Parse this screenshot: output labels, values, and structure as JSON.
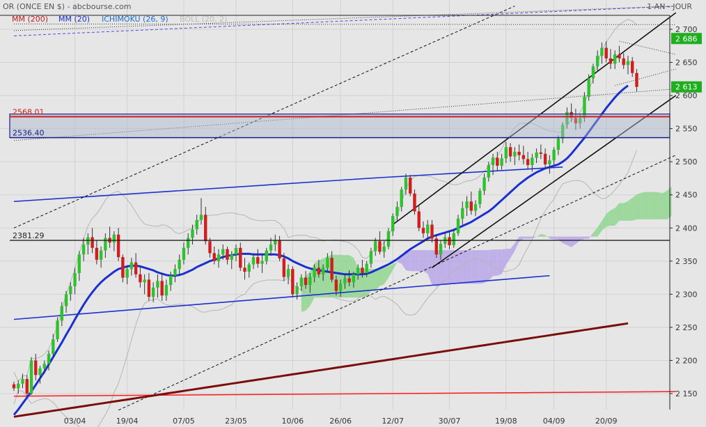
{
  "header": {
    "title": "OR (ONCE EN $) - abcbourse.com",
    "period": "1 AN - JOUR"
  },
  "indicators": [
    {
      "label": "MM (200)",
      "color": "#c81e1e"
    },
    {
      "label": "MM (20)",
      "color": "#1a2fd0"
    },
    {
      "label": "ICHIMOKU (26, 9)",
      "color": "#1a6fd0"
    },
    {
      "label": "BOLL (20, 2)",
      "color": "#bdbdbd"
    }
  ],
  "chart_data": {
    "type": "candlestick",
    "ylim": [
      2125,
      2735
    ],
    "y_ticks": [
      {
        "v": 2150,
        "label": "2 150"
      },
      {
        "v": 2200,
        "label": "2 200"
      },
      {
        "v": 2250,
        "label": "2 250"
      },
      {
        "v": 2300,
        "label": "2 300"
      },
      {
        "v": 2350,
        "label": "2 350"
      },
      {
        "v": 2400,
        "label": "2 400"
      },
      {
        "v": 2450,
        "label": "2 450"
      },
      {
        "v": 2500,
        "label": "2 500"
      },
      {
        "v": 2550,
        "label": "2 550"
      },
      {
        "v": 2600,
        "label": "2 600"
      },
      {
        "v": 2650,
        "label": "2 650"
      },
      {
        "v": 2700,
        "label": "2 700"
      }
    ],
    "x_ticks": [
      {
        "idx": 14,
        "label": "03/04"
      },
      {
        "idx": 26,
        "label": "19/04"
      },
      {
        "idx": 39,
        "label": "07/05"
      },
      {
        "idx": 51,
        "label": "23/05"
      },
      {
        "idx": 64,
        "label": "10/06"
      },
      {
        "idx": 75,
        "label": "26/06"
      },
      {
        "idx": 87,
        "label": "12/07"
      },
      {
        "idx": 100,
        "label": "30/07"
      },
      {
        "idx": 113,
        "label": "19/08"
      },
      {
        "idx": 124,
        "label": "04/09"
      },
      {
        "idx": 136,
        "label": "20/09"
      }
    ],
    "price_labels": [
      {
        "value": 2686,
        "label": "2 686"
      },
      {
        "value": 2613,
        "label": "2 613"
      }
    ],
    "levels": [
      {
        "value": 2568.01,
        "label": "2568.01",
        "color": "#c81e1e"
      },
      {
        "value": 2536.4,
        "label": "2536.40",
        "color": "#1a1a8c"
      },
      {
        "value": 2381.29,
        "label": "2381.29",
        "color": "#222222"
      }
    ],
    "candles": [
      [
        2164,
        2168,
        2154,
        2158
      ],
      [
        2158,
        2170,
        2150,
        2165
      ],
      [
        2165,
        2180,
        2158,
        2172
      ],
      [
        2172,
        2178,
        2145,
        2150
      ],
      [
        2150,
        2205,
        2148,
        2200
      ],
      [
        2200,
        2210,
        2170,
        2178
      ],
      [
        2178,
        2192,
        2165,
        2188
      ],
      [
        2188,
        2200,
        2180,
        2195
      ],
      [
        2195,
        2215,
        2185,
        2210
      ],
      [
        2210,
        2240,
        2205,
        2232
      ],
      [
        2232,
        2265,
        2228,
        2260
      ],
      [
        2260,
        2288,
        2252,
        2282
      ],
      [
        2282,
        2305,
        2272,
        2300
      ],
      [
        2300,
        2318,
        2290,
        2312
      ],
      [
        2312,
        2340,
        2300,
        2332
      ],
      [
        2332,
        2365,
        2320,
        2360
      ],
      [
        2360,
        2385,
        2350,
        2375
      ],
      [
        2375,
        2392,
        2360,
        2386
      ],
      [
        2386,
        2400,
        2362,
        2370
      ],
      [
        2370,
        2382,
        2345,
        2352
      ],
      [
        2352,
        2372,
        2340,
        2366
      ],
      [
        2366,
        2392,
        2355,
        2385
      ],
      [
        2385,
        2402,
        2370,
        2378
      ],
      [
        2378,
        2395,
        2365,
        2390
      ],
      [
        2390,
        2400,
        2350,
        2356
      ],
      [
        2356,
        2360,
        2318,
        2325
      ],
      [
        2325,
        2342,
        2315,
        2338
      ],
      [
        2338,
        2355,
        2328,
        2348
      ],
      [
        2348,
        2362,
        2325,
        2330
      ],
      [
        2330,
        2342,
        2310,
        2318
      ],
      [
        2318,
        2330,
        2300,
        2322
      ],
      [
        2322,
        2332,
        2290,
        2296
      ],
      [
        2296,
        2318,
        2288,
        2310
      ],
      [
        2310,
        2330,
        2295,
        2320
      ],
      [
        2320,
        2332,
        2290,
        2298
      ],
      [
        2298,
        2322,
        2290,
        2314
      ],
      [
        2314,
        2334,
        2305,
        2328
      ],
      [
        2328,
        2345,
        2318,
        2338
      ],
      [
        2338,
        2360,
        2330,
        2352
      ],
      [
        2352,
        2378,
        2345,
        2370
      ],
      [
        2370,
        2392,
        2360,
        2385
      ],
      [
        2385,
        2405,
        2375,
        2398
      ],
      [
        2398,
        2420,
        2390,
        2412
      ],
      [
        2412,
        2445,
        2405,
        2420
      ],
      [
        2420,
        2432,
        2375,
        2380
      ],
      [
        2380,
        2385,
        2355,
        2362
      ],
      [
        2362,
        2372,
        2345,
        2350
      ],
      [
        2350,
        2368,
        2340,
        2360
      ],
      [
        2360,
        2375,
        2352,
        2368
      ],
      [
        2368,
        2372,
        2345,
        2352
      ],
      [
        2352,
        2365,
        2338,
        2360
      ],
      [
        2360,
        2375,
        2350,
        2370
      ],
      [
        2370,
        2378,
        2335,
        2340
      ],
      [
        2340,
        2355,
        2322,
        2334
      ],
      [
        2334,
        2348,
        2325,
        2345
      ],
      [
        2345,
        2362,
        2338,
        2356
      ],
      [
        2356,
        2368,
        2340,
        2346
      ],
      [
        2346,
        2360,
        2332,
        2350
      ],
      [
        2350,
        2370,
        2345,
        2366
      ],
      [
        2366,
        2385,
        2358,
        2375
      ],
      [
        2375,
        2390,
        2365,
        2382
      ],
      [
        2382,
        2388,
        2350,
        2354
      ],
      [
        2354,
        2362,
        2320,
        2326
      ],
      [
        2326,
        2345,
        2315,
        2338
      ],
      [
        2338,
        2342,
        2295,
        2300
      ],
      [
        2300,
        2318,
        2292,
        2312
      ],
      [
        2312,
        2330,
        2305,
        2325
      ],
      [
        2325,
        2335,
        2308,
        2314
      ],
      [
        2314,
        2332,
        2302,
        2326
      ],
      [
        2326,
        2345,
        2318,
        2340
      ],
      [
        2340,
        2352,
        2325,
        2330
      ],
      [
        2330,
        2345,
        2320,
        2340
      ],
      [
        2340,
        2362,
        2335,
        2355
      ],
      [
        2355,
        2365,
        2318,
        2322
      ],
      [
        2322,
        2328,
        2298,
        2305
      ],
      [
        2305,
        2322,
        2296,
        2316
      ],
      [
        2316,
        2330,
        2308,
        2324
      ],
      [
        2324,
        2336,
        2312,
        2318
      ],
      [
        2318,
        2334,
        2310,
        2330
      ],
      [
        2330,
        2345,
        2322,
        2340
      ],
      [
        2340,
        2352,
        2325,
        2332
      ],
      [
        2332,
        2350,
        2326,
        2346
      ],
      [
        2346,
        2370,
        2340,
        2365
      ],
      [
        2365,
        2385,
        2358,
        2380
      ],
      [
        2380,
        2395,
        2360,
        2364
      ],
      [
        2364,
        2380,
        2355,
        2372
      ],
      [
        2372,
        2400,
        2368,
        2395
      ],
      [
        2395,
        2422,
        2388,
        2418
      ],
      [
        2418,
        2440,
        2410,
        2432
      ],
      [
        2432,
        2462,
        2425,
        2458
      ],
      [
        2458,
        2482,
        2450,
        2476
      ],
      [
        2476,
        2480,
        2448,
        2452
      ],
      [
        2452,
        2458,
        2420,
        2425
      ],
      [
        2425,
        2435,
        2395,
        2400
      ],
      [
        2400,
        2410,
        2385,
        2392
      ],
      [
        2392,
        2412,
        2384,
        2405
      ],
      [
        2405,
        2412,
        2378,
        2384
      ],
      [
        2384,
        2390,
        2355,
        2360
      ],
      [
        2360,
        2382,
        2352,
        2376
      ],
      [
        2376,
        2392,
        2370,
        2386
      ],
      [
        2386,
        2395,
        2368,
        2374
      ],
      [
        2374,
        2398,
        2370,
        2392
      ],
      [
        2392,
        2420,
        2388,
        2414
      ],
      [
        2414,
        2440,
        2405,
        2430
      ],
      [
        2430,
        2448,
        2418,
        2440
      ],
      [
        2440,
        2455,
        2420,
        2426
      ],
      [
        2426,
        2442,
        2418,
        2436
      ],
      [
        2436,
        2460,
        2430,
        2456
      ],
      [
        2456,
        2482,
        2450,
        2476
      ],
      [
        2476,
        2500,
        2470,
        2495
      ],
      [
        2495,
        2512,
        2480,
        2506
      ],
      [
        2506,
        2515,
        2486,
        2494
      ],
      [
        2494,
        2512,
        2488,
        2505
      ],
      [
        2505,
        2530,
        2498,
        2522
      ],
      [
        2522,
        2528,
        2500,
        2508
      ],
      [
        2508,
        2522,
        2495,
        2515
      ],
      [
        2515,
        2526,
        2502,
        2510
      ],
      [
        2510,
        2524,
        2496,
        2504
      ],
      [
        2504,
        2515,
        2488,
        2495
      ],
      [
        2495,
        2512,
        2485,
        2506
      ],
      [
        2506,
        2520,
        2498,
        2514
      ],
      [
        2514,
        2526,
        2504,
        2512
      ],
      [
        2512,
        2520,
        2490,
        2496
      ],
      [
        2496,
        2510,
        2482,
        2502
      ],
      [
        2502,
        2522,
        2495,
        2518
      ],
      [
        2518,
        2540,
        2510,
        2535
      ],
      [
        2535,
        2560,
        2528,
        2556
      ],
      [
        2556,
        2582,
        2550,
        2575
      ],
      [
        2575,
        2588,
        2560,
        2566
      ],
      [
        2566,
        2580,
        2548,
        2558
      ],
      [
        2558,
        2572,
        2550,
        2566
      ],
      [
        2566,
        2605,
        2560,
        2598
      ],
      [
        2598,
        2632,
        2592,
        2626
      ],
      [
        2626,
        2648,
        2618,
        2644
      ],
      [
        2644,
        2668,
        2636,
        2660
      ],
      [
        2660,
        2680,
        2648,
        2672
      ],
      [
        2672,
        2682,
        2650,
        2656
      ],
      [
        2656,
        2670,
        2640,
        2648
      ],
      [
        2648,
        2668,
        2640,
        2662
      ],
      [
        2662,
        2675,
        2650,
        2656
      ],
      [
        2656,
        2664,
        2640,
        2646
      ],
      [
        2646,
        2660,
        2632,
        2652
      ],
      [
        2652,
        2658,
        2628,
        2634
      ],
      [
        2634,
        2640,
        2606,
        2613
      ]
    ],
    "ma20": [
      2118,
      2126,
      2135,
      2144,
      2153,
      2163,
      2173,
      2183,
      2194,
      2205,
      2216,
      2227,
      2239,
      2250,
      2262,
      2273,
      2284,
      2294,
      2303,
      2311,
      2318,
      2324,
      2329,
      2334,
      2338,
      2340,
      2342,
      2343,
      2343,
      2342,
      2340,
      2338,
      2336,
      2333,
      2331,
      2329,
      2328,
      2328,
      2329,
      2331,
      2334,
      2337,
      2341,
      2344,
      2347,
      2350,
      2352,
      2354,
      2356,
      2358,
      2359,
      2360,
      2361,
      2361,
      2361,
      2360,
      2360,
      2360,
      2360,
      2360,
      2360,
      2359,
      2357,
      2354,
      2350,
      2347,
      2344,
      2341,
      2339,
      2337,
      2336,
      2335,
      2334,
      2333,
      2332,
      2331,
      2330,
      2330,
      2330,
      2330,
      2330,
      2331,
      2333,
      2336,
      2339,
      2342,
      2345,
      2349,
      2353,
      2358,
      2363,
      2368,
      2372,
      2376,
      2380,
      2384,
      2387,
      2389,
      2391,
      2393,
      2395,
      2397,
      2400,
      2403,
      2406,
      2409,
      2413,
      2417,
      2421,
      2425,
      2430,
      2436,
      2442,
      2448,
      2454,
      2460,
      2466,
      2471,
      2476,
      2480,
      2484,
      2487,
      2490,
      2492,
      2494,
      2496,
      2500,
      2505,
      2512,
      2520,
      2528,
      2536,
      2545,
      2554,
      2563,
      2572,
      2581,
      2589,
      2597,
      2604,
      2610,
      2615
    ],
    "ma200": [
      2115,
      2116,
      2117,
      2118,
      2119,
      2120,
      2121,
      2122,
      2123,
      2124,
      2125,
      2126,
      2127,
      2128,
      2129,
      2130,
      2131,
      2132,
      2133,
      2134,
      2135,
      2136,
      2137,
      2138,
      2139,
      2140,
      2141,
      2142,
      2143,
      2144,
      2145,
      2146,
      2147,
      2148,
      2149,
      2150,
      2151,
      2152,
      2153,
      2154,
      2155,
      2156,
      2157,
      2158,
      2159,
      2160,
      2161,
      2162,
      2163,
      2164,
      2165,
      2166,
      2167,
      2168,
      2169,
      2170,
      2171,
      2172,
      2173,
      2174,
      2175,
      2176,
      2177,
      2178,
      2179,
      2180,
      2181,
      2182,
      2183,
      2184,
      2185,
      2186,
      2187,
      2188,
      2189,
      2190,
      2191,
      2192,
      2193,
      2194,
      2195,
      2196,
      2197,
      2198,
      2199,
      2200,
      2201,
      2202,
      2203,
      2204,
      2205,
      2206,
      2207,
      2208,
      2209,
      2210,
      2211,
      2212,
      2213,
      2214,
      2215,
      2216,
      2217,
      2218,
      2219,
      2220,
      2221,
      2222,
      2223,
      2224,
      2225,
      2226,
      2227,
      2228,
      2229,
      2230,
      2231,
      2232,
      2233,
      2234,
      2235,
      2236,
      2237,
      2238,
      2239,
      2240,
      2241,
      2242,
      2243,
      2244,
      2245,
      2246,
      2247,
      2248,
      2249,
      2250,
      2251,
      2252,
      2253,
      2254,
      2255,
      2256
    ],
    "support_line": {
      "from": [
        0,
        2146
      ],
      "to": [
        152,
        2153
      ],
      "color": "#ff1a1a"
    },
    "trendlines": [
      {
        "from": [
          0,
          2440
        ],
        "to": [
          84,
          2476
        ],
        "color": "#1a2fd0"
      },
      {
        "from": [
          84,
          2476
        ],
        "to": [
          126,
          2492
        ],
        "color": "#1a2fd0"
      },
      {
        "from": [
          0,
          2262
        ],
        "to": [
          123,
          2328
        ],
        "color": "#1a2fd0"
      },
      {
        "from": [
          87,
          2405
        ],
        "to": [
          152,
          2725
        ],
        "color": "#111111"
      },
      {
        "from": [
          96,
          2340
        ],
        "to": [
          152,
          2600
        ],
        "color": "#111111"
      }
    ],
    "dashed_lines": [
      {
        "from": [
          0,
          2400
        ],
        "to": [
          115,
          2735
        ],
        "color": "#111111"
      },
      {
        "from": [
          24,
          2125
        ],
        "to": [
          152,
          2510
        ],
        "color": "#111111"
      },
      {
        "from": [
          0,
          2690
        ],
        "to": [
          152,
          2735
        ],
        "color": "#4a4ae6"
      }
    ],
    "dotted_lines": [
      {
        "from": [
          0,
          2698
        ],
        "to": [
          152,
          2735
        ],
        "color": "#333333"
      },
      {
        "from": [
          0,
          2532
        ],
        "to": [
          152,
          2610
        ],
        "color": "#333333"
      },
      {
        "from": [
          0,
          2708
        ],
        "to": [
          152,
          2707
        ],
        "color": "#333333"
      },
      {
        "from": [
          139,
          2682
        ],
        "to": [
          152,
          2662
        ],
        "color": "#333333"
      },
      {
        "from": [
          138,
          2615
        ],
        "to": [
          152,
          2640
        ],
        "color": "#333333"
      }
    ]
  }
}
